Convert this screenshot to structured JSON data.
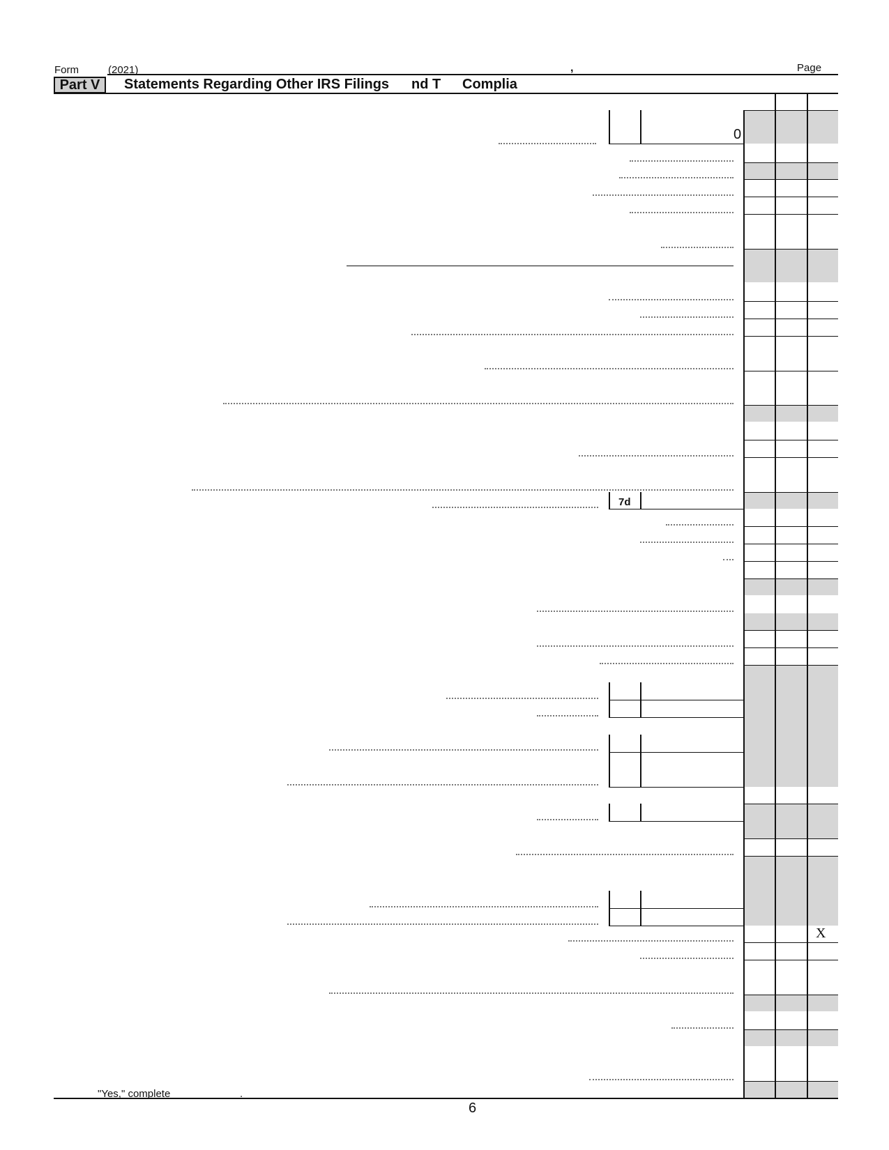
{
  "header": {
    "form_label": "Form",
    "year": "(2021)",
    "comma_mark": ",",
    "page_label": "Page",
    "part_label": "Part V",
    "part_title": "Statements Regarding Other IRS Filings",
    "title_fragment_1": "nd T",
    "title_fragment_2": "Complia"
  },
  "fields": {
    "line1_value": "0",
    "line7d_label": "7d",
    "checkmark_x": "X"
  },
  "footer": {
    "note": "\"Yes,\" complete",
    "note_period": ".",
    "page_number": "6"
  }
}
